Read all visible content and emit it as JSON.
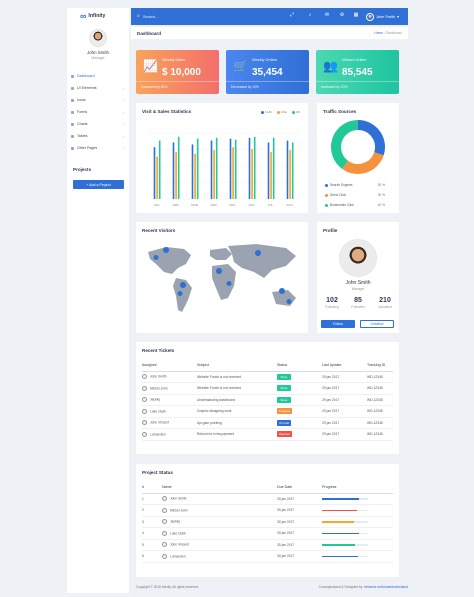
{
  "app": {
    "name": "Infinity"
  },
  "user": {
    "name": "John Smith",
    "role": "Manager"
  },
  "sidebar": {
    "items": [
      {
        "label": "Dashboard"
      },
      {
        "label": "UI Elements"
      },
      {
        "label": "Icons"
      },
      {
        "label": "Forms"
      },
      {
        "label": "Charts"
      },
      {
        "label": "Tables"
      },
      {
        "label": "Other Pages"
      }
    ],
    "projects_title": "Projects",
    "add_project": "+ Add a Project"
  },
  "topbar": {
    "search_placeholder": "Search...",
    "user_name": "John Smith",
    "icons": [
      "expand-icon",
      "bell-icon",
      "envelope-icon",
      "gear-icon",
      "grid-icon"
    ]
  },
  "page": {
    "title": "Dashboard",
    "breadcrumb_home": "Home",
    "breadcrumb_current": "Dashboard"
  },
  "stats": [
    {
      "title": "Weekly Sales",
      "value": "$ 10,000",
      "note": "Increased by 60%",
      "icon": "trend-chart-icon",
      "color_from": "#f8a35b",
      "color_to": "#f36f6b"
    },
    {
      "title": "Weekly Orders",
      "value": "35,454",
      "note": "Decreased by 10%",
      "icon": "cart-icon",
      "color_from": "#4c86f0",
      "color_to": "#2f6fd6"
    },
    {
      "title": "Visitors Online",
      "value": "85,545",
      "note": "Increased by 10%",
      "icon": "users-icon",
      "color_from": "#4cd8b2",
      "color_to": "#1ec4a0"
    }
  ],
  "visit_chart": {
    "title": "Visit & Sales Statistics",
    "legend": [
      "CHN",
      "USA",
      "UK"
    ],
    "colors": [
      "#2f6fd6",
      "#f5a623",
      "#20c997"
    ]
  },
  "chart_data": {
    "type": "bar",
    "categories": [
      "JAN",
      "FEB",
      "MAR",
      "APR",
      "MAY",
      "JUN",
      "JUL",
      "AUG"
    ],
    "series": [
      {
        "name": "CHN",
        "values": [
          55,
          60,
          58,
          62,
          64,
          65,
          60,
          62
        ]
      },
      {
        "name": "USA",
        "values": [
          45,
          50,
          48,
          52,
          55,
          53,
          50,
          52
        ]
      },
      {
        "name": "UK",
        "values": [
          62,
          66,
          64,
          65,
          63,
          66,
          65,
          60
        ]
      }
    ],
    "ylim": [
      0,
      70
    ],
    "xlabel": "",
    "ylabel": "",
    "grid": true,
    "legend_position": "top-right"
  },
  "traffic": {
    "title": "Traffic Sources",
    "items": [
      {
        "label": "Search Engines",
        "pct": "30 %",
        "value": 30,
        "color": "#2f6fd6"
      },
      {
        "label": "Direct Click",
        "pct": "30 %",
        "value": 30,
        "color": "#f5923e"
      },
      {
        "label": "Bookmarks Click",
        "pct": "40 %",
        "value": 40,
        "color": "#20c997"
      }
    ]
  },
  "visitors": {
    "title": "Recent Visitors"
  },
  "profile": {
    "title": "Profile",
    "name": "John Smith",
    "role": "Manager",
    "stats": [
      {
        "value": "102",
        "label": "Following"
      },
      {
        "value": "85",
        "label": "Followers"
      },
      {
        "value": "210",
        "label": "Uploaded"
      }
    ],
    "follow": "Follow",
    "unfollow": "Unfollow"
  },
  "tickets": {
    "title": "Recent Tickets",
    "headers": [
      "Assignee",
      "Subject",
      "Status",
      "Last Update",
      "Tracking ID"
    ],
    "rows": [
      {
        "assignee": "John Smith",
        "subject": "Website Funds is not received",
        "status": "Done",
        "color": "#20c997",
        "date": "29 jan 2017",
        "id": "WD-12345"
      },
      {
        "assignee": "Michel John",
        "subject": "Website Funds is not received",
        "status": "Done",
        "color": "#20c997",
        "date": "29 jan 2017",
        "id": "WD-12345"
      },
      {
        "assignee": "Jackky",
        "subject": "Understanding dashboard",
        "status": "Done",
        "color": "#20c997",
        "date": "29 jan 2017",
        "id": "WD-12345"
      },
      {
        "assignee": "Luke Clark",
        "subject": "Graphic designing work",
        "status": "Progress",
        "color": "#f5923e",
        "date": "29 jan 2017",
        "id": "WD-12345"
      },
      {
        "assignee": "John Vincent",
        "subject": "Api gaur pointing",
        "status": "On hold",
        "color": "#2f6fd6",
        "date": "29 jan 2017",
        "id": "WD-12345"
      },
      {
        "assignee": "Lumanden",
        "subject": "Refund for extra payment",
        "status": "Rejected",
        "color": "#f0514a",
        "date": "29 jan 2017",
        "id": "WD-12345"
      }
    ]
  },
  "projects": {
    "title": "Project Status",
    "headers": [
      "#",
      "Name",
      "Due Date",
      "Progress"
    ],
    "rows": [
      {
        "n": "1",
        "name": "John Smith",
        "due": "30 jan 2017",
        "progress": 0.8,
        "color": "#2f6fd6"
      },
      {
        "n": "2",
        "name": "Michel John",
        "due": "30 jan 2017",
        "progress": 0.75,
        "color": "#f0514a"
      },
      {
        "n": "3",
        "name": "Jackky",
        "due": "30 jan 2017",
        "progress": 0.7,
        "color": "#f5a623"
      },
      {
        "n": "4",
        "name": "Luke Clark",
        "due": "30 jan 2017",
        "progress": 0.8,
        "color": "#2f6fd6"
      },
      {
        "n": "5",
        "name": "John Vincent",
        "due": "30 jan 2017",
        "progress": 0.72,
        "color": "#20c997"
      },
      {
        "n": "6",
        "name": "Lumanden",
        "due": "30 jan 2017",
        "progress": 0.78,
        "color": "#2f6fd6"
      }
    ]
  },
  "footer": {
    "copyright": "Copyright © 2018 Infinity. All rights reserved.",
    "credit": "Conceptualized & Designed by:",
    "credit_link": "behance.net/createdsortedland"
  }
}
